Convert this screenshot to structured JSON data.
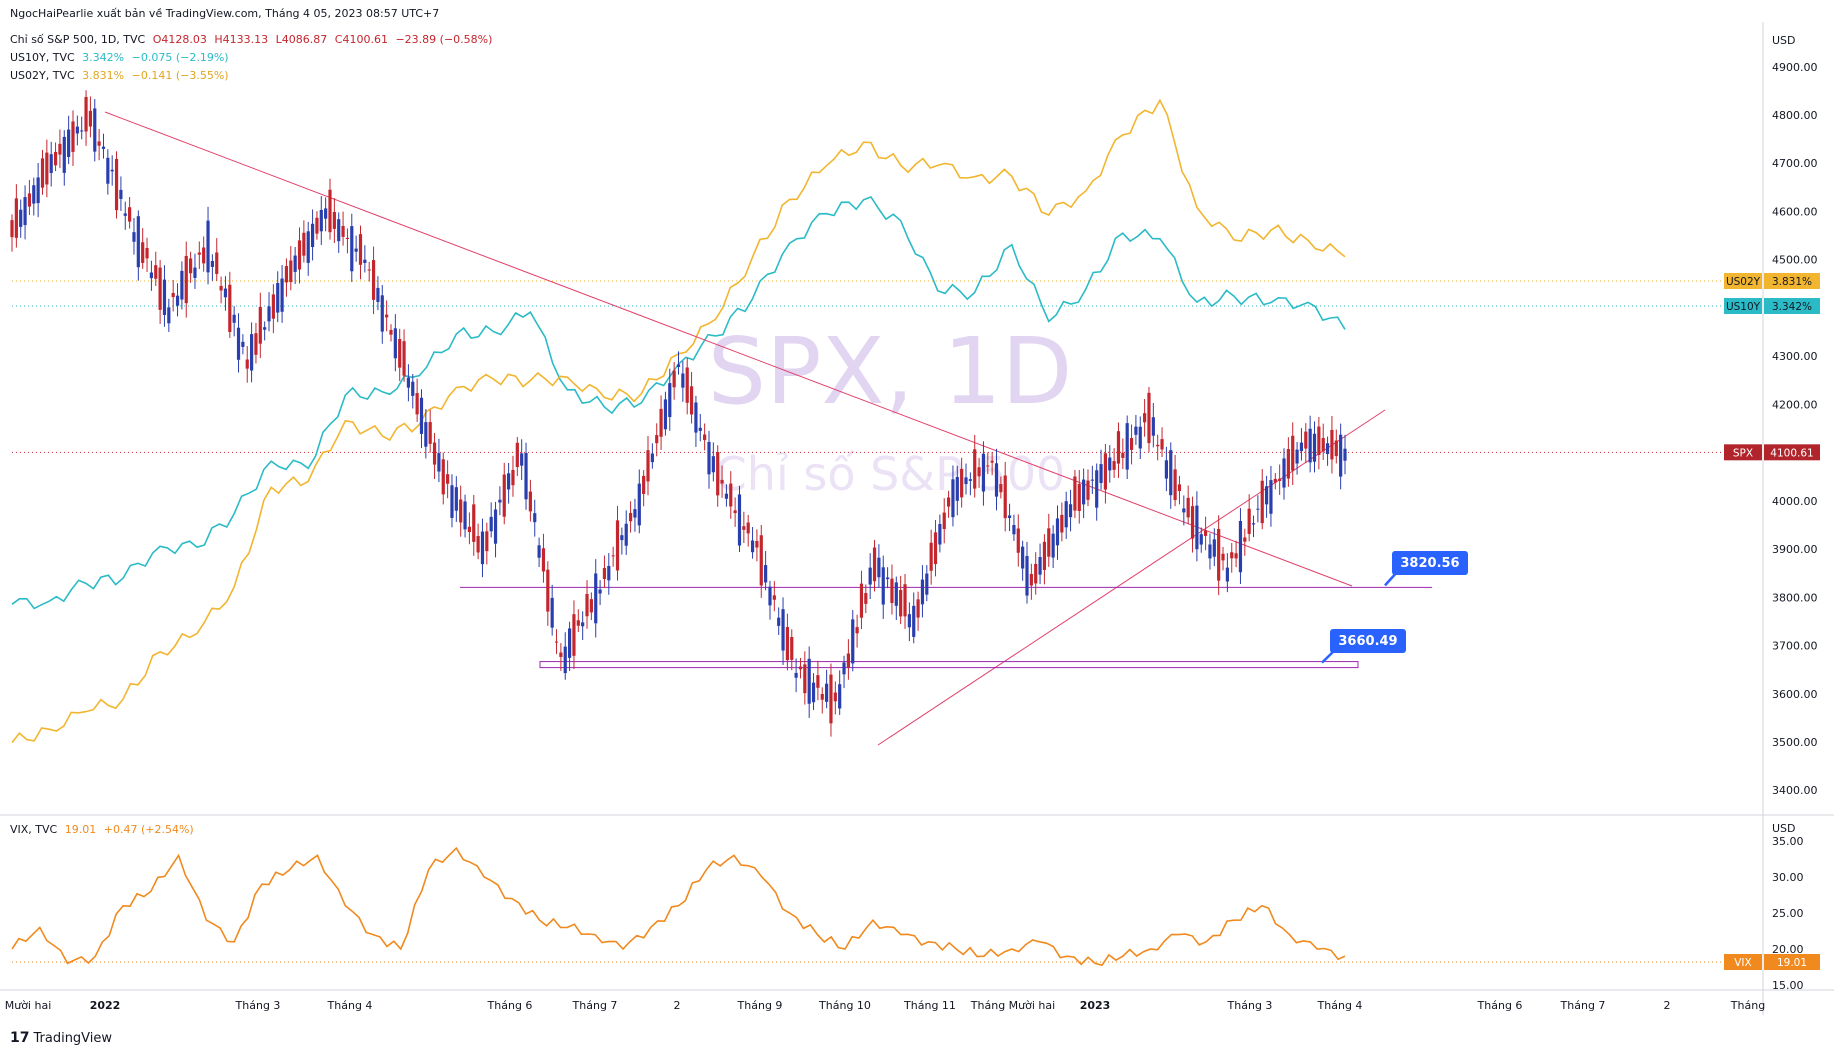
{
  "publisher_line": "NgocHaiPearlie xuất bản về TradingView.com, Tháng 4 05, 2023 08:57 UTC+7",
  "legend": {
    "spx": {
      "name": "Chỉ số S&P 500, 1D, TVC",
      "o": "O4128.03",
      "h": "H4133.13",
      "l": "L4086.87",
      "c": "C4100.61",
      "chg": "−23.89 (−0.58%)"
    },
    "us10y": {
      "name": "US10Y, TVC",
      "val": "3.342%",
      "chg": "−0.075 (−2.19%)"
    },
    "us02y": {
      "name": "US02Y, TVC",
      "val": "3.831%",
      "chg": "−0.141 (−3.55%)"
    },
    "vix": {
      "name": "VIX, TVC",
      "val": "19.01",
      "chg": "+0.47 (+2.54%)"
    }
  },
  "watermark": {
    "title": "SPX, 1D",
    "subtitle": "Chỉ số S&P 500"
  },
  "colors": {
    "up": "#2a3fae",
    "down": "#c4262e",
    "us10y": "#2bbbc7",
    "us02y": "#f2b52f",
    "vix": "#f08a1e",
    "trend": "#e2426b",
    "support": "#9c27b0",
    "label_blue": "#2962ff"
  },
  "price_axis": {
    "unit": "USD",
    "ticks": [
      "4900.00",
      "4800.00",
      "4700.00",
      "4600.00",
      "4500.00",
      "4300.00",
      "4200.00",
      "4100.00",
      "4000.00",
      "3900.00",
      "3800.00",
      "3700.00",
      "3600.00",
      "3500.00",
      "3400.00"
    ]
  },
  "vix_axis": {
    "unit": "USD",
    "ticks": [
      "35.00",
      "30.00",
      "25.00",
      "20.00",
      "15.00"
    ]
  },
  "time_axis": [
    "Mười hai",
    "2022",
    "Tháng 3",
    "Tháng 4",
    "Tháng 6",
    "Tháng 7",
    "2",
    "Tháng 9",
    "Tháng 10",
    "Tháng 11",
    "Tháng Mười hai",
    "2023",
    "Tháng 3",
    "Tháng 4",
    "Tháng 6",
    "Tháng 7",
    "2",
    "Tháng"
  ],
  "price_tags": [
    {
      "label": "US02Y",
      "value": "3.831%"
    },
    {
      "label": "US10Y",
      "value": "3.342%"
    },
    {
      "label": "SPX",
      "value": "4100.61"
    },
    {
      "label": "VIX",
      "value": "19.01"
    }
  ],
  "level_labels": [
    "3820.56",
    "3660.49"
  ],
  "footer": "TradingView",
  "chart_data": {
    "type": "line",
    "title": "SPX, 1D",
    "candles_spx": [
      {
        "x": "2021-12",
        "o": 4650,
        "c": 4560
      },
      {
        "x": "2021-12",
        "o": 4560,
        "c": 4700
      },
      {
        "x": "2022-01-03",
        "o": 4780,
        "c": 4796
      },
      {
        "x": "2022-01",
        "o": 4700,
        "c": 4580
      },
      {
        "x": "2022-01",
        "o": 4580,
        "c": 4400
      },
      {
        "x": "2022-02",
        "o": 4400,
        "c": 4530
      },
      {
        "x": "2022-02",
        "o": 4530,
        "c": 4290
      },
      {
        "x": "2022-03",
        "o": 4290,
        "c": 4460
      },
      {
        "x": "2022-03",
        "o": 4460,
        "c": 4600
      },
      {
        "x": "2022-04",
        "o": 4600,
        "c": 4500
      },
      {
        "x": "2022-04",
        "o": 4500,
        "c": 4280
      },
      {
        "x": "2022-05",
        "o": 4280,
        "c": 4050
      },
      {
        "x": "2022-05",
        "o": 4050,
        "c": 3900
      },
      {
        "x": "2022-06",
        "o": 3900,
        "c": 4100
      },
      {
        "x": "2022-06",
        "o": 4100,
        "c": 3670
      },
      {
        "x": "2022-07",
        "o": 3670,
        "c": 3820
      },
      {
        "x": "2022-07",
        "o": 3820,
        "c": 4000
      },
      {
        "x": "2022-08",
        "o": 4000,
        "c": 4280
      },
      {
        "x": "2022-08",
        "o": 4280,
        "c": 4050
      },
      {
        "x": "2022-09",
        "o": 4050,
        "c": 3900
      },
      {
        "x": "2022-09",
        "o": 3900,
        "c": 3650
      },
      {
        "x": "2022-10",
        "o": 3650,
        "c": 3580
      },
      {
        "x": "2022-10",
        "o": 3580,
        "c": 3870
      },
      {
        "x": "2022-11",
        "o": 3870,
        "c": 3750
      },
      {
        "x": "2022-11",
        "o": 3750,
        "c": 4020
      },
      {
        "x": "2022-12",
        "o": 4020,
        "c": 4080
      },
      {
        "x": "2022-12",
        "o": 4080,
        "c": 3830
      },
      {
        "x": "2023-01",
        "o": 3830,
        "c": 3990
      },
      {
        "x": "2023-01",
        "o": 3990,
        "c": 4070
      },
      {
        "x": "2023-02",
        "o": 4070,
        "c": 4170
      },
      {
        "x": "2023-02",
        "o": 4170,
        "c": 3970
      },
      {
        "x": "2023-03",
        "o": 3970,
        "c": 3860
      },
      {
        "x": "2023-03",
        "o": 3860,
        "c": 4010
      },
      {
        "x": "2023-04",
        "o": 4010,
        "c": 4124
      },
      {
        "x": "2023-04-04",
        "o": 4124,
        "c": 4100.61
      }
    ],
    "series": [
      {
        "name": "US10Y",
        "values": [
          1.45,
          1.5,
          1.55,
          1.65,
          1.85,
          1.8,
          2.1,
          2.4,
          2.35,
          2.9,
          2.85,
          3.0,
          3.3,
          3.25,
          3.45,
          2.9,
          2.75,
          2.85,
          3.05,
          3.25,
          3.55,
          3.85,
          4.1,
          4.2,
          4.0,
          3.6,
          3.55,
          3.85,
          3.4,
          3.55,
          3.95,
          3.95,
          3.45,
          3.55,
          3.5,
          3.45,
          3.342
        ]
      },
      {
        "name": "US02Y",
        "values": [
          0.55,
          0.6,
          0.7,
          0.85,
          1.1,
          1.25,
          1.6,
          2.2,
          2.3,
          2.7,
          2.55,
          2.7,
          2.9,
          2.95,
          3.0,
          2.95,
          2.85,
          2.9,
          3.1,
          3.4,
          3.8,
          4.15,
          4.45,
          4.55,
          4.4,
          4.45,
          4.3,
          4.35,
          4.1,
          4.2,
          4.65,
          4.85,
          4.1,
          3.95,
          3.95,
          3.9,
          3.831
        ]
      },
      {
        "name": "VIX",
        "values": [
          20,
          23,
          18,
          19,
          26,
          28,
          33,
          24,
          21,
          29,
          31,
          33,
          26,
          22,
          20,
          31,
          34,
          30,
          27,
          24,
          23,
          22,
          20,
          23,
          26,
          31,
          33,
          30,
          25,
          22,
          20,
          24,
          22,
          21,
          20,
          19,
          20,
          21,
          19,
          18,
          19,
          20,
          22,
          21,
          24,
          26,
          22,
          20,
          19.01
        ]
      }
    ],
    "levels": [
      3820.56,
      3660.49
    ],
    "ylim": [
      3400,
      4950
    ],
    "vix_ylim": [
      15,
      36
    ]
  }
}
